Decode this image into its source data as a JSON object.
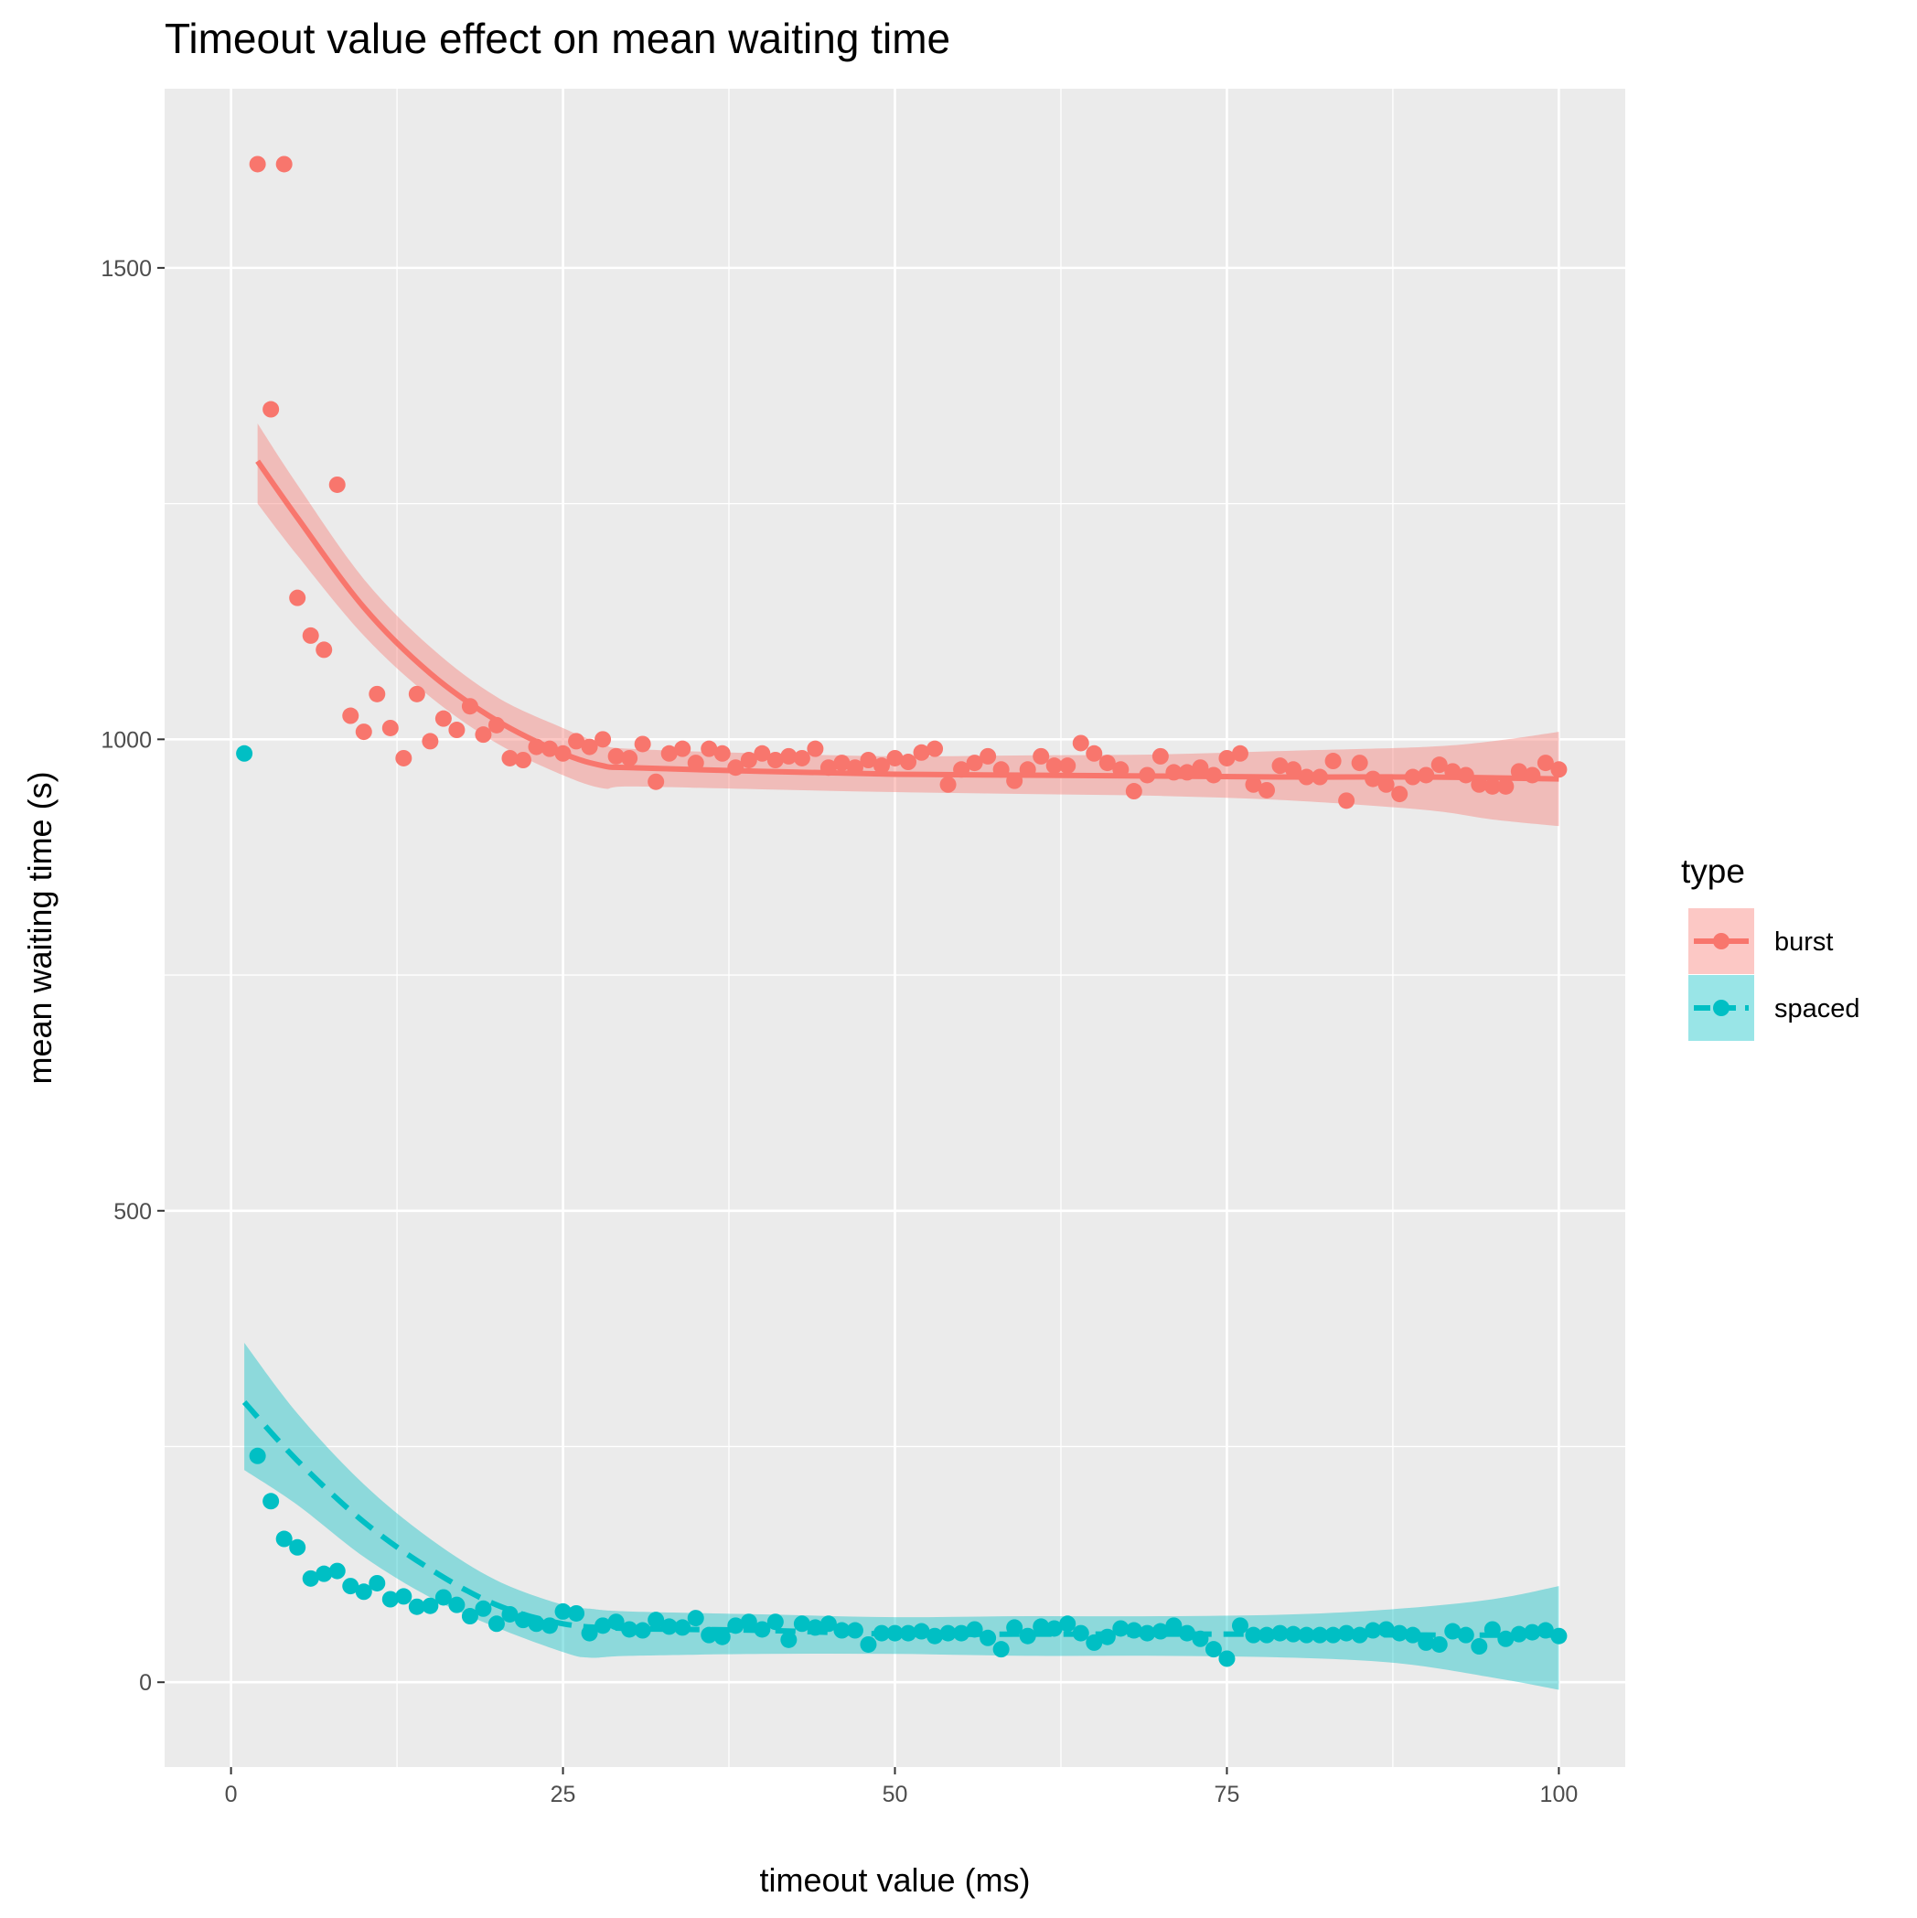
{
  "chart_data": {
    "type": "scatter",
    "title": "Timeout value effect on mean waiting time",
    "xlabel": "timeout value (ms)",
    "ylabel": "mean waiting time (s)",
    "xlim": [
      -5,
      105
    ],
    "ylim": [
      -90,
      1690
    ],
    "x_ticks": [
      0,
      25,
      50,
      75,
      100
    ],
    "x_tick_labels": [
      "0",
      "25",
      "50",
      "75",
      "100"
    ],
    "y_ticks": [
      0,
      500,
      1000,
      1500
    ],
    "y_tick_labels": [
      "0",
      "500",
      "1000",
      "1500"
    ],
    "grid": true,
    "legend": {
      "title": "type",
      "position": "right"
    },
    "series": [
      {
        "name": "burst",
        "color": "#F8766D",
        "smooth_line": "solid",
        "points": [
          [
            2,
            1610
          ],
          [
            3,
            1350
          ],
          [
            4,
            1610
          ],
          [
            5,
            1150
          ],
          [
            6,
            1110
          ],
          [
            7,
            1095
          ],
          [
            8,
            1270
          ],
          [
            9,
            1025
          ],
          [
            10,
            1008
          ],
          [
            11,
            1048
          ],
          [
            12,
            1012
          ],
          [
            13,
            980
          ],
          [
            14,
            1048
          ],
          [
            15,
            998
          ],
          [
            16,
            1022
          ],
          [
            17,
            1010
          ],
          [
            18,
            1035
          ],
          [
            19,
            1005
          ],
          [
            20,
            1015
          ],
          [
            21,
            980
          ],
          [
            22,
            978
          ],
          [
            23,
            992
          ],
          [
            24,
            990
          ],
          [
            25,
            985
          ],
          [
            26,
            998
          ],
          [
            27,
            992
          ],
          [
            28,
            1000
          ],
          [
            29,
            982
          ],
          [
            30,
            980
          ],
          [
            31,
            995
          ],
          [
            32,
            955
          ],
          [
            33,
            985
          ],
          [
            34,
            990
          ],
          [
            35,
            975
          ],
          [
            36,
            990
          ],
          [
            37,
            985
          ],
          [
            38,
            970
          ],
          [
            39,
            978
          ],
          [
            40,
            985
          ],
          [
            41,
            978
          ],
          [
            42,
            982
          ],
          [
            43,
            980
          ],
          [
            44,
            990
          ],
          [
            45,
            970
          ],
          [
            46,
            975
          ],
          [
            47,
            970
          ],
          [
            48,
            978
          ],
          [
            49,
            972
          ],
          [
            50,
            980
          ],
          [
            51,
            976
          ],
          [
            52,
            986
          ],
          [
            53,
            990
          ],
          [
            54,
            952
          ],
          [
            55,
            968
          ],
          [
            56,
            975
          ],
          [
            57,
            982
          ],
          [
            58,
            968
          ],
          [
            59,
            956
          ],
          [
            60,
            968
          ],
          [
            61,
            982
          ],
          [
            62,
            972
          ],
          [
            63,
            972
          ],
          [
            64,
            996
          ],
          [
            65,
            985
          ],
          [
            66,
            975
          ],
          [
            67,
            968
          ],
          [
            68,
            945
          ],
          [
            69,
            962
          ],
          [
            70,
            982
          ],
          [
            71,
            965
          ],
          [
            72,
            965
          ],
          [
            73,
            970
          ],
          [
            74,
            962
          ],
          [
            75,
            980
          ],
          [
            76,
            985
          ],
          [
            77,
            952
          ],
          [
            78,
            946
          ],
          [
            79,
            972
          ],
          [
            80,
            968
          ],
          [
            81,
            960
          ],
          [
            82,
            960
          ],
          [
            83,
            977
          ],
          [
            84,
            935
          ],
          [
            85,
            975
          ],
          [
            86,
            958
          ],
          [
            87,
            952
          ],
          [
            88,
            942
          ],
          [
            89,
            960
          ],
          [
            90,
            962
          ],
          [
            91,
            973
          ],
          [
            92,
            966
          ],
          [
            93,
            962
          ],
          [
            94,
            952
          ],
          [
            95,
            950
          ],
          [
            96,
            950
          ],
          [
            97,
            966
          ],
          [
            98,
            962
          ],
          [
            99,
            975
          ],
          [
            100,
            968
          ]
        ],
        "fit": [
          [
            2,
            1295
          ],
          [
            5,
            1235
          ],
          [
            10,
            1140
          ],
          [
            15,
            1070
          ],
          [
            20,
            1020
          ],
          [
            25,
            985
          ],
          [
            28,
            972
          ],
          [
            30,
            970
          ],
          [
            40,
            966
          ],
          [
            50,
            963
          ],
          [
            60,
            962
          ],
          [
            70,
            961
          ],
          [
            80,
            960
          ],
          [
            90,
            960
          ],
          [
            100,
            958
          ]
        ],
        "band": [
          [
            2,
            1335,
            1250
          ],
          [
            5,
            1270,
            1195
          ],
          [
            10,
            1170,
            1110
          ],
          [
            15,
            1098,
            1045
          ],
          [
            20,
            1045,
            996
          ],
          [
            25,
            1012,
            962
          ],
          [
            28,
            995,
            948
          ],
          [
            30,
            990,
            950
          ],
          [
            40,
            985,
            947
          ],
          [
            50,
            982,
            944
          ],
          [
            60,
            983,
            942
          ],
          [
            70,
            984,
            940
          ],
          [
            80,
            988,
            935
          ],
          [
            90,
            992,
            925
          ],
          [
            95,
            998,
            915
          ],
          [
            100,
            1008,
            908
          ]
        ]
      },
      {
        "name": "spaced",
        "color": "#00BFC4",
        "smooth_line": "dashed",
        "points": [
          [
            1,
            985
          ],
          [
            2,
            240
          ],
          [
            3,
            192
          ],
          [
            4,
            152
          ],
          [
            5,
            143
          ],
          [
            6,
            110
          ],
          [
            7,
            115
          ],
          [
            8,
            118
          ],
          [
            9,
            102
          ],
          [
            10,
            96
          ],
          [
            11,
            105
          ],
          [
            12,
            88
          ],
          [
            13,
            91
          ],
          [
            14,
            80
          ],
          [
            15,
            81
          ],
          [
            16,
            90
          ],
          [
            17,
            82
          ],
          [
            18,
            70
          ],
          [
            19,
            78
          ],
          [
            20,
            62
          ],
          [
            21,
            72
          ],
          [
            22,
            66
          ],
          [
            23,
            62
          ],
          [
            24,
            60
          ],
          [
            25,
            75
          ],
          [
            26,
            73
          ],
          [
            27,
            52
          ],
          [
            28,
            60
          ],
          [
            29,
            64
          ],
          [
            30,
            56
          ],
          [
            31,
            55
          ],
          [
            32,
            66
          ],
          [
            33,
            59
          ],
          [
            34,
            58
          ],
          [
            35,
            68
          ],
          [
            36,
            50
          ],
          [
            37,
            48
          ],
          [
            38,
            60
          ],
          [
            39,
            64
          ],
          [
            40,
            56
          ],
          [
            41,
            64
          ],
          [
            42,
            45
          ],
          [
            43,
            62
          ],
          [
            44,
            58
          ],
          [
            45,
            62
          ],
          [
            46,
            55
          ],
          [
            47,
            55
          ],
          [
            48,
            40
          ],
          [
            49,
            52
          ],
          [
            50,
            52
          ],
          [
            51,
            52
          ],
          [
            52,
            54
          ],
          [
            53,
            49
          ],
          [
            54,
            52
          ],
          [
            55,
            52
          ],
          [
            56,
            56
          ],
          [
            57,
            47
          ],
          [
            58,
            35
          ],
          [
            59,
            58
          ],
          [
            60,
            49
          ],
          [
            61,
            59
          ],
          [
            62,
            57
          ],
          [
            63,
            62
          ],
          [
            64,
            52
          ],
          [
            65,
            42
          ],
          [
            66,
            48
          ],
          [
            67,
            57
          ],
          [
            68,
            55
          ],
          [
            69,
            52
          ],
          [
            70,
            54
          ],
          [
            71,
            60
          ],
          [
            72,
            52
          ],
          [
            73,
            46
          ],
          [
            74,
            35
          ],
          [
            75,
            25
          ],
          [
            76,
            60
          ],
          [
            77,
            50
          ],
          [
            78,
            50
          ],
          [
            79,
            52
          ],
          [
            80,
            51
          ],
          [
            81,
            50
          ],
          [
            82,
            50
          ],
          [
            83,
            50
          ],
          [
            84,
            52
          ],
          [
            85,
            50
          ],
          [
            86,
            55
          ],
          [
            87,
            56
          ],
          [
            88,
            52
          ],
          [
            89,
            50
          ],
          [
            90,
            42
          ],
          [
            91,
            40
          ],
          [
            92,
            54
          ],
          [
            93,
            50
          ],
          [
            94,
            38
          ],
          [
            95,
            56
          ],
          [
            96,
            46
          ],
          [
            97,
            51
          ],
          [
            98,
            53
          ],
          [
            99,
            55
          ],
          [
            100,
            49
          ]
        ],
        "fit": [
          [
            1,
            297
          ],
          [
            5,
            235
          ],
          [
            10,
            170
          ],
          [
            15,
            120
          ],
          [
            20,
            82
          ],
          [
            25,
            62
          ],
          [
            30,
            57
          ],
          [
            40,
            55
          ],
          [
            50,
            51
          ],
          [
            60,
            51
          ],
          [
            70,
            51
          ],
          [
            80,
            51
          ],
          [
            90,
            50
          ],
          [
            100,
            50
          ]
        ],
        "band": [
          [
            1,
            360,
            225
          ],
          [
            5,
            285,
            188
          ],
          [
            10,
            210,
            133
          ],
          [
            15,
            152,
            90
          ],
          [
            20,
            108,
            58
          ],
          [
            25,
            82,
            32
          ],
          [
            27,
            78,
            26
          ],
          [
            30,
            75,
            28
          ],
          [
            40,
            72,
            30
          ],
          [
            50,
            69,
            30
          ],
          [
            60,
            70,
            28
          ],
          [
            70,
            70,
            28
          ],
          [
            80,
            72,
            26
          ],
          [
            88,
            78,
            20
          ],
          [
            95,
            88,
            5
          ],
          [
            100,
            102,
            -8
          ]
        ]
      }
    ]
  }
}
